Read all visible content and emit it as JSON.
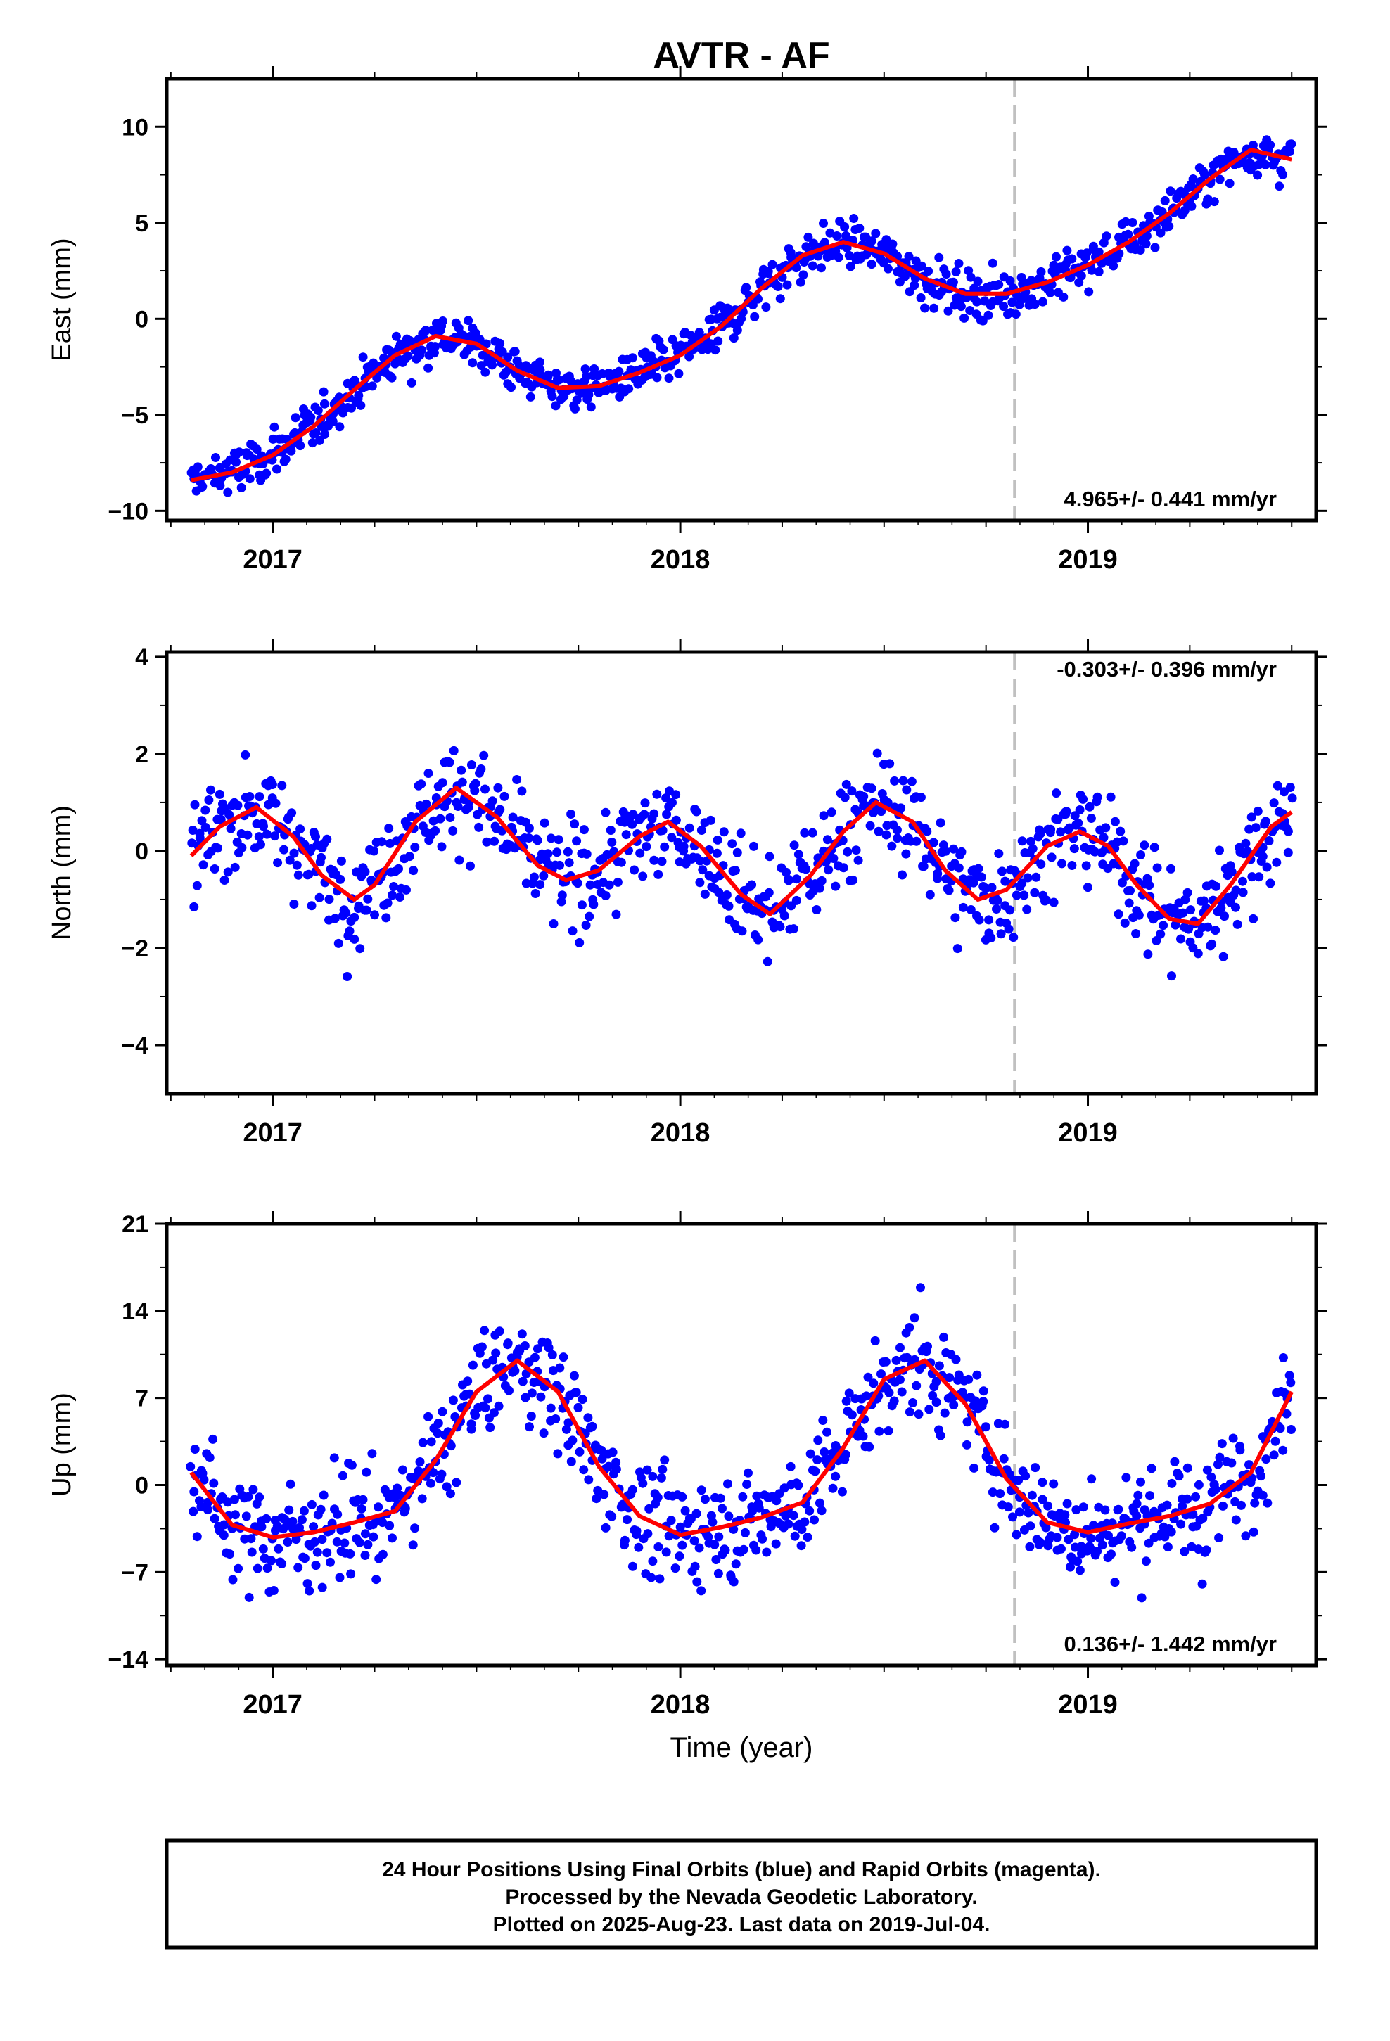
{
  "title": "AVTR - AF",
  "xlabel": "Time (year)",
  "footer": {
    "line1": "24 Hour Positions Using Final Orbits (blue) and Rapid Orbits (magenta).",
    "line2": "Processed by the Nevada Geodetic Laboratory.",
    "line3": "Plotted on 2025-Aug-23. Last data on 2019-Jul-04."
  },
  "colors": {
    "points": "#0000ff",
    "fit": "#ff0000",
    "break": "#c0c0c0"
  },
  "chart_data": [
    {
      "type": "scatter",
      "ylabel": "East (mm)",
      "rate_label": "4.965+/- 0.441 mm/yr",
      "xlim": [
        2016.74,
        2019.56
      ],
      "ylim": [
        -10.5,
        12.5
      ],
      "yticks": [
        -10,
        -5,
        0,
        5,
        10
      ],
      "xticks": [
        2017,
        2018,
        2019
      ],
      "break_x": 2018.82,
      "scatter_sd": 0.85,
      "fit_x": [
        2016.8,
        2016.9,
        2017.0,
        2017.1,
        2017.2,
        2017.3,
        2017.4,
        2017.5,
        2017.6,
        2017.7,
        2017.8,
        2017.9,
        2018.0,
        2018.1,
        2018.2,
        2018.3,
        2018.4,
        2018.5,
        2018.6,
        2018.7,
        2018.8,
        2018.9,
        2019.0,
        2019.1,
        2019.2,
        2019.3,
        2019.4,
        2019.5
      ],
      "fit_y": [
        -8.4,
        -8.0,
        -7.1,
        -5.6,
        -3.7,
        -1.9,
        -0.9,
        -1.3,
        -2.7,
        -3.6,
        -3.5,
        -2.8,
        -1.9,
        -0.4,
        1.6,
        3.3,
        4.0,
        3.4,
        2.1,
        1.3,
        1.3,
        1.9,
        2.8,
        4.0,
        5.5,
        7.3,
        8.8,
        8.3
      ]
    },
    {
      "type": "scatter",
      "ylabel": "North (mm)",
      "rate_label": "-0.303+/- 0.396 mm/yr",
      "xlim": [
        2016.74,
        2019.56
      ],
      "ylim": [
        -5.0,
        4.1
      ],
      "yticks": [
        -4,
        -2,
        0,
        2,
        4
      ],
      "xticks": [
        2017,
        2018,
        2019
      ],
      "break_x": 2018.82,
      "scatter_sd": 0.75,
      "fit_x": [
        2016.8,
        2016.87,
        2016.96,
        2017.05,
        2017.12,
        2017.2,
        2017.25,
        2017.35,
        2017.45,
        2017.55,
        2017.65,
        2017.72,
        2017.8,
        2017.9,
        2017.97,
        2018.05,
        2018.15,
        2018.22,
        2018.32,
        2018.4,
        2018.48,
        2018.57,
        2018.65,
        2018.73,
        2018.8,
        2018.9,
        2018.98,
        2019.05,
        2019.12,
        2019.2,
        2019.27,
        2019.35,
        2019.45,
        2019.5
      ],
      "fit_y": [
        -0.1,
        0.5,
        0.9,
        0.3,
        -0.5,
        -1.0,
        -0.7,
        0.6,
        1.3,
        0.7,
        -0.3,
        -0.6,
        -0.4,
        0.3,
        0.6,
        0.1,
        -0.9,
        -1.3,
        -0.5,
        0.4,
        1.0,
        0.6,
        -0.4,
        -1.0,
        -0.8,
        0.1,
        0.4,
        0.1,
        -0.7,
        -1.4,
        -1.5,
        -0.7,
        0.5,
        0.8
      ]
    },
    {
      "type": "scatter",
      "ylabel": "Up (mm)",
      "rate_label": "0.136+/- 1.442 mm/yr",
      "xlim": [
        2016.74,
        2019.56
      ],
      "ylim": [
        -14.5,
        21
      ],
      "yticks": [
        -14,
        -7,
        0,
        7,
        14,
        21
      ],
      "xticks": [
        2017,
        2018,
        2019
      ],
      "break_x": 2018.82,
      "scatter_sd": 3.0,
      "fit_x": [
        2016.8,
        2016.9,
        2017.0,
        2017.1,
        2017.2,
        2017.3,
        2017.4,
        2017.5,
        2017.6,
        2017.7,
        2017.8,
        2017.9,
        2018.0,
        2018.1,
        2018.2,
        2018.3,
        2018.4,
        2018.5,
        2018.6,
        2018.7,
        2018.8,
        2018.9,
        2019.0,
        2019.1,
        2019.2,
        2019.3,
        2019.4,
        2019.5
      ],
      "fit_y": [
        1.0,
        -3.2,
        -4.2,
        -3.8,
        -3.0,
        -2.1,
        2.0,
        7.5,
        10.0,
        7.5,
        1.5,
        -2.5,
        -4.0,
        -3.4,
        -2.6,
        -1.4,
        3.0,
        8.5,
        10.0,
        6.5,
        0.5,
        -3.0,
        -3.8,
        -3.1,
        -2.5,
        -1.5,
        1.0,
        7.5
      ]
    }
  ]
}
